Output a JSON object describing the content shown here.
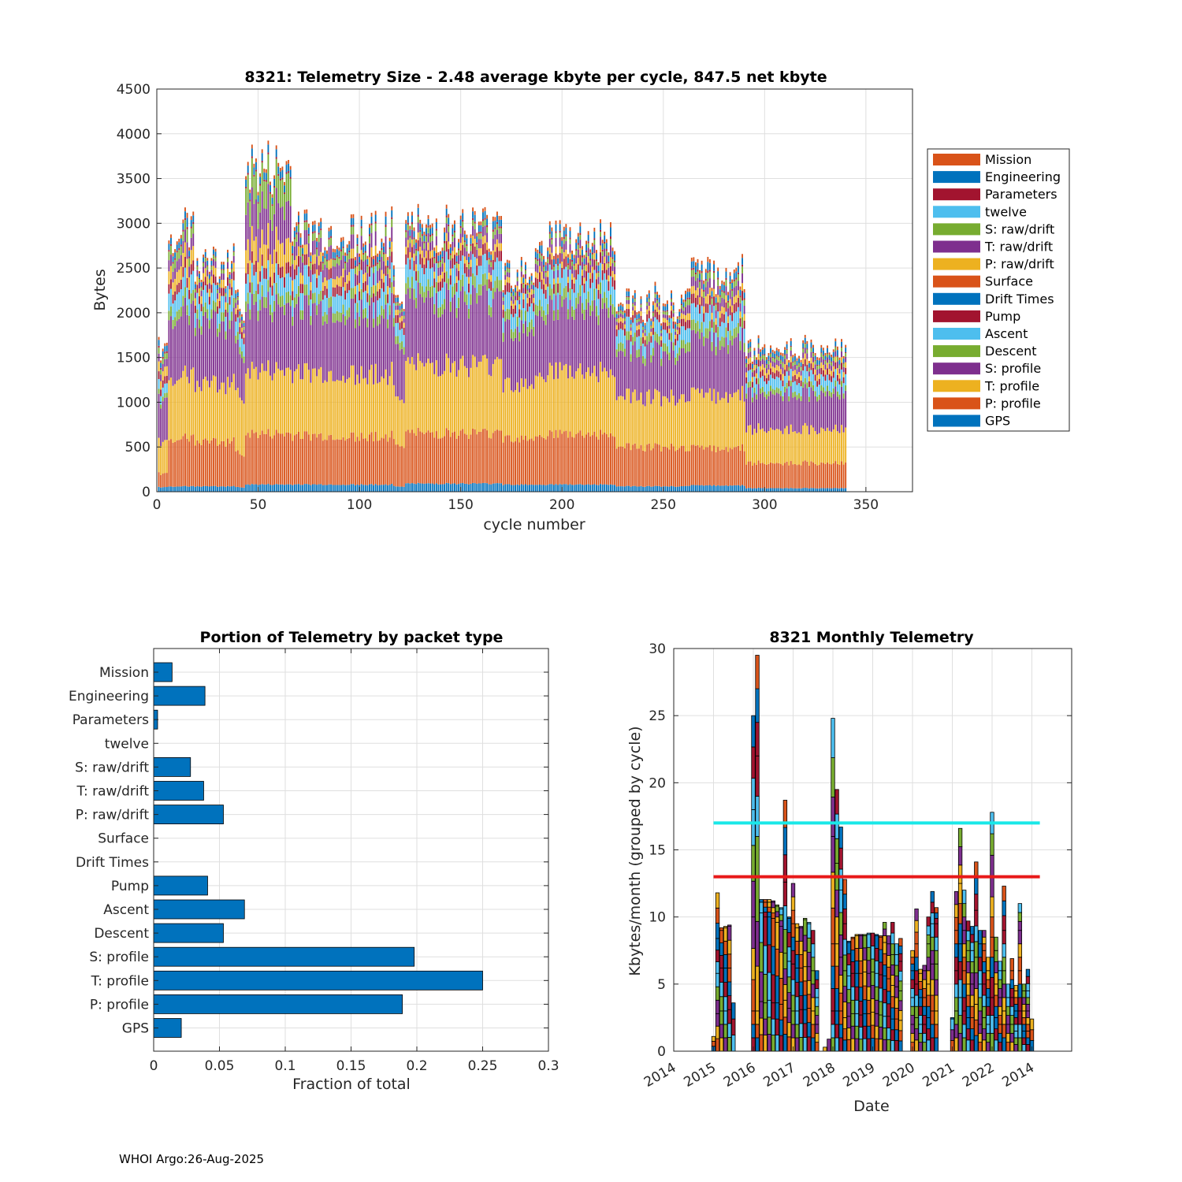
{
  "footer": "WHOI Argo:26-Aug-2025",
  "colors": {
    "Mission": "#D95319",
    "Engineering": "#0072BD",
    "Parameters": "#A2142F",
    "twelve": "#4DBEEE",
    "S: raw/drift": "#77AC30",
    "T: raw/drift": "#7E2F8E",
    "P: raw/drift": "#EDB120",
    "Surface": "#D95319",
    "Drift Times": "#0072BD",
    "Pump": "#A2142F",
    "Ascent": "#4DBEEE",
    "Descent": "#77AC30",
    "S: profile": "#7E2F8E",
    "T: profile": "#EDB120",
    "P: profile": "#D95319",
    "GPS": "#0072BD",
    "threshold_high": "#19E8E8",
    "threshold_low": "#E81919"
  },
  "chart_data": [
    {
      "type": "bar",
      "stacked": true,
      "title": "8321: Telemetry Size - 2.48 average kbyte per cycle,  847.5 net kbyte",
      "xlabel": "cycle number",
      "ylabel": "Bytes",
      "xlim": [
        0,
        373
      ],
      "ylim": [
        0,
        4500
      ],
      "xticks": [
        "0",
        "50",
        "100",
        "150",
        "200",
        "250",
        "300",
        "350"
      ],
      "yticks": [
        "0",
        "500",
        "1000",
        "1500",
        "2000",
        "2500",
        "3000",
        "3500",
        "4000",
        "4500"
      ],
      "legend_position": "outside-right",
      "legend": [
        "Mission",
        "Engineering",
        "Parameters",
        "twelve",
        "S: raw/drift",
        "T: raw/drift",
        "P: raw/drift",
        "Surface",
        "Drift Times",
        "Pump",
        "Ascent",
        "Descent",
        "S: profile",
        "T: profile",
        "P: profile",
        "GPS"
      ],
      "stack_order": [
        "GPS",
        "P: profile",
        "T: profile",
        "S: profile",
        "Descent",
        "Ascent",
        "Pump",
        "Drift Times",
        "Surface",
        "P: raw/drift",
        "T: raw/drift",
        "S: raw/drift",
        "twelve",
        "Parameters",
        "Engineering",
        "Mission"
      ],
      "segments": [
        {
          "cycle_start": 1,
          "cycle_end": 5,
          "values": [
            50,
            150,
            350,
            450,
            50,
            100,
            80,
            0,
            0,
            100,
            80,
            60,
            0,
            20,
            60,
            30
          ]
        },
        {
          "cycle_start": 6,
          "cycle_end": 18,
          "values": [
            60,
            540,
            700,
            700,
            110,
            200,
            110,
            0,
            0,
            150,
            130,
            100,
            0,
            20,
            70,
            40
          ]
        },
        {
          "cycle_start": 19,
          "cycle_end": 38,
          "values": [
            60,
            500,
            650,
            680,
            100,
            180,
            90,
            0,
            0,
            90,
            70,
            40,
            0,
            10,
            50,
            30
          ]
        },
        {
          "cycle_start": 39,
          "cycle_end": 43,
          "values": [
            50,
            380,
            650,
            500,
            80,
            150,
            80,
            0,
            0,
            50,
            50,
            30,
            0,
            10,
            40,
            30
          ]
        },
        {
          "cycle_start": 44,
          "cycle_end": 66,
          "values": [
            80,
            560,
            700,
            700,
            120,
            200,
            120,
            0,
            0,
            260,
            400,
            300,
            0,
            20,
            80,
            40
          ]
        },
        {
          "cycle_start": 67,
          "cycle_end": 116,
          "values": [
            80,
            540,
            700,
            700,
            110,
            200,
            110,
            0,
            0,
            100,
            150,
            80,
            0,
            20,
            70,
            40
          ]
        },
        {
          "cycle_start": 117,
          "cycle_end": 122,
          "values": [
            60,
            480,
            550,
            600,
            90,
            150,
            90,
            0,
            0,
            60,
            50,
            30,
            0,
            10,
            50,
            30
          ]
        },
        {
          "cycle_start": 123,
          "cycle_end": 170,
          "values": [
            90,
            560,
            760,
            720,
            120,
            200,
            110,
            0,
            0,
            80,
            100,
            60,
            0,
            20,
            70,
            40
          ]
        },
        {
          "cycle_start": 171,
          "cycle_end": 186,
          "values": [
            80,
            520,
            610,
            620,
            110,
            180,
            100,
            0,
            0,
            60,
            50,
            40,
            0,
            10,
            50,
            30
          ]
        },
        {
          "cycle_start": 187,
          "cycle_end": 226,
          "values": [
            80,
            560,
            700,
            700,
            120,
            200,
            110,
            0,
            0,
            70,
            90,
            50,
            0,
            20,
            70,
            40
          ]
        },
        {
          "cycle_start": 227,
          "cycle_end": 260,
          "values": [
            60,
            440,
            560,
            500,
            90,
            150,
            80,
            0,
            0,
            50,
            40,
            30,
            0,
            10,
            50,
            30
          ]
        },
        {
          "cycle_start": 261,
          "cycle_end": 290,
          "values": [
            70,
            420,
            600,
            600,
            110,
            170,
            100,
            0,
            0,
            80,
            100,
            70,
            0,
            20,
            70,
            40
          ]
        },
        {
          "cycle_start": 291,
          "cycle_end": 340,
          "values": [
            40,
            280,
            380,
            400,
            60,
            120,
            70,
            0,
            0,
            60,
            60,
            40,
            0,
            10,
            50,
            30
          ]
        }
      ]
    },
    {
      "type": "bar",
      "orientation": "horizontal",
      "title": "Portion of Telemetry by packet type",
      "xlabel": "Fraction of total",
      "ylabel": "",
      "xlim": [
        0,
        0.3
      ],
      "xticks": [
        "0",
        "0.05",
        "0.1",
        "0.15",
        "0.2",
        "0.25",
        "0.3"
      ],
      "categories": [
        "Mission",
        "Engineering",
        "Parameters",
        "twelve",
        "S: raw/drift",
        "T: raw/drift",
        "P: raw/drift",
        "Surface",
        "Drift Times",
        "Pump",
        "Ascent",
        "Descent",
        "S: profile",
        "T: profile",
        "P: profile",
        "GPS"
      ],
      "values": [
        0.014,
        0.039,
        0.003,
        0,
        0.028,
        0.038,
        0.053,
        0,
        0,
        0.041,
        0.069,
        0.053,
        0.198,
        0.25,
        0.189,
        0.021
      ]
    },
    {
      "type": "bar",
      "stacked": true,
      "title": "8321 Monthly Telemetry",
      "xlabel": "Date",
      "ylabel": "Kbytes/month (grouped by cycle)",
      "ylim": [
        0,
        30
      ],
      "xlim_years": [
        2014,
        2024
      ],
      "yticks": [
        "0",
        "5",
        "10",
        "15",
        "20",
        "25",
        "30"
      ],
      "xticks": [
        "2014",
        "2015",
        "2016",
        "2017",
        "2018",
        "2019",
        "2020",
        "2021",
        "2022",
        "2014"
      ],
      "threshold_high": 17,
      "threshold_low": 13,
      "months": [
        {
          "t": 2015.0,
          "v": [
            1.1,
            0,
            0,
            0
          ]
        },
        {
          "t": 2015.1,
          "v": [
            2.8,
            3.0,
            2.6,
            3.4
          ]
        },
        {
          "t": 2015.2,
          "v": [
            3.0,
            3.2,
            2.8,
            0.2
          ]
        },
        {
          "t": 2015.3,
          "v": [
            3.0,
            3.2,
            3.0,
            0.1
          ]
        },
        {
          "t": 2015.4,
          "v": [
            3.1,
            3.1,
            3.1,
            0.1
          ]
        },
        {
          "t": 2015.5,
          "v": [
            3.6,
            0,
            0,
            0
          ]
        },
        {
          "t": 2016.0,
          "v": [
            3.0,
            7.0,
            8.0,
            7.0
          ]
        },
        {
          "t": 2016.1,
          "v": [
            3.0,
            10.0,
            9.0,
            7.5
          ]
        },
        {
          "t": 2016.2,
          "v": [
            3.7,
            6.6,
            0.8,
            0.2
          ]
        },
        {
          "t": 2016.3,
          "v": [
            3.6,
            6.4,
            1.1,
            0.2
          ]
        },
        {
          "t": 2016.4,
          "v": [
            3.8,
            6.2,
            1.1,
            0.2
          ]
        },
        {
          "t": 2016.5,
          "v": [
            3.6,
            6.3,
            1.2,
            0.1
          ]
        },
        {
          "t": 2016.6,
          "v": [
            3.6,
            6.0,
            1.2,
            0.1
          ]
        },
        {
          "t": 2016.7,
          "v": [
            3.5,
            5.8,
            1.3,
            0.1
          ]
        },
        {
          "t": 2016.8,
          "v": [
            3.8,
            3.5,
            5.3,
            6.1
          ]
        },
        {
          "t": 2016.9,
          "v": [
            3.2,
            3.5,
            3.2,
            0.1
          ]
        },
        {
          "t": 2017.0,
          "v": [
            3.0,
            3.5,
            3.0,
            3.0
          ]
        },
        {
          "t": 2017.1,
          "v": [
            3.0,
            3.2,
            3.0,
            0.3
          ]
        },
        {
          "t": 2017.2,
          "v": [
            3.1,
            3.1,
            3.0,
            0.1
          ]
        },
        {
          "t": 2017.3,
          "v": [
            3.1,
            3.2,
            3.5,
            0.1
          ]
        },
        {
          "t": 2017.4,
          "v": [
            3.2,
            3.1,
            3.2,
            0.1
          ]
        },
        {
          "t": 2017.5,
          "v": [
            3.0,
            3.0,
            3.0,
            0.0
          ]
        },
        {
          "t": 2017.6,
          "v": [
            2.0,
            2.0,
            2.0,
            0.0
          ]
        },
        {
          "t": 2017.8,
          "v": [
            0.3,
            0,
            0,
            0
          ]
        },
        {
          "t": 2017.9,
          "v": [
            0.9,
            0,
            0,
            0
          ]
        },
        {
          "t": 2018.0,
          "v": [
            3.0,
            5.0,
            8.0,
            8.8
          ]
        },
        {
          "t": 2018.1,
          "v": [
            3.0,
            5.0,
            6.0,
            5.5
          ]
        },
        {
          "t": 2018.2,
          "v": [
            3.0,
            4.0,
            5.0,
            4.7
          ]
        },
        {
          "t": 2018.3,
          "v": [
            2.5,
            3.5,
            3.5,
            3.3
          ]
        },
        {
          "t": 2018.4,
          "v": [
            2.6,
            3.0,
            2.5,
            0.1
          ]
        },
        {
          "t": 2018.5,
          "v": [
            2.8,
            3.0,
            2.6,
            0.1
          ]
        },
        {
          "t": 2018.6,
          "v": [
            2.8,
            3.0,
            2.8,
            0.1
          ]
        },
        {
          "t": 2018.7,
          "v": [
            2.7,
            3.1,
            2.8,
            0.1
          ]
        },
        {
          "t": 2018.8,
          "v": [
            2.8,
            3.1,
            2.7,
            0.1
          ]
        },
        {
          "t": 2018.9,
          "v": [
            2.8,
            3.0,
            2.9,
            0.1
          ]
        },
        {
          "t": 2019.0,
          "v": [
            2.9,
            3.0,
            2.9,
            0.0
          ]
        },
        {
          "t": 2019.1,
          "v": [
            2.8,
            3.0,
            2.8,
            0.1
          ]
        },
        {
          "t": 2019.2,
          "v": [
            2.7,
            3.0,
            2.8,
            0.1
          ]
        },
        {
          "t": 2019.3,
          "v": [
            2.6,
            3.0,
            2.5,
            1.5
          ]
        },
        {
          "t": 2019.4,
          "v": [
            2.6,
            2.8,
            2.6,
            0.6
          ]
        },
        {
          "t": 2019.5,
          "v": [
            2.4,
            2.5,
            2.3,
            2.4
          ]
        },
        {
          "t": 2019.6,
          "v": [
            2.4,
            2.4,
            2.4,
            0.8
          ]
        },
        {
          "t": 2019.7,
          "v": [
            2.3,
            2.2,
            2.2,
            1.7
          ]
        },
        {
          "t": 2020.0,
          "v": [
            2.0,
            2.0,
            2.0,
            1.5
          ]
        },
        {
          "t": 2020.1,
          "v": [
            2.5,
            2.5,
            3.0,
            2.6
          ]
        },
        {
          "t": 2020.2,
          "v": [
            2.0,
            2.0,
            1.8,
            0.3
          ]
        },
        {
          "t": 2020.3,
          "v": [
            2.0,
            2.0,
            2.0,
            0.4
          ]
        },
        {
          "t": 2020.4,
          "v": [
            2.5,
            2.5,
            3.0,
            2.0
          ]
        },
        {
          "t": 2020.5,
          "v": [
            3.0,
            3.5,
            3.0,
            2.4
          ]
        },
        {
          "t": 2020.6,
          "v": [
            3.0,
            3.5,
            3.0,
            1.2
          ]
        },
        {
          "t": 2021.0,
          "v": [
            0.8,
            0.8,
            0.8,
            0.1
          ]
        },
        {
          "t": 2021.1,
          "v": [
            3.0,
            3.0,
            3.0,
            2.9
          ]
        },
        {
          "t": 2021.2,
          "v": [
            4.0,
            4.0,
            4.5,
            4.1
          ]
        },
        {
          "t": 2021.3,
          "v": [
            3.0,
            3.0,
            3.0,
            3.0
          ]
        },
        {
          "t": 2021.4,
          "v": [
            2.5,
            2.5,
            2.5,
            2.2
          ]
        },
        {
          "t": 2021.5,
          "v": [
            2.5,
            2.5,
            2.5,
            1.8
          ]
        },
        {
          "t": 2021.6,
          "v": [
            3.5,
            3.5,
            3.5,
            3.6
          ]
        },
        {
          "t": 2021.7,
          "v": [
            2.0,
            3.0,
            3.0,
            1.0
          ]
        },
        {
          "t": 2021.8,
          "v": [
            2.5,
            2.5,
            2.5,
            1.5
          ]
        },
        {
          "t": 2021.9,
          "v": [
            2.0,
            2.0,
            2.0,
            1.0
          ]
        },
        {
          "t": 2022.0,
          "v": [
            4.0,
            4.5,
            4.5,
            4.8
          ]
        },
        {
          "t": 2022.1,
          "v": [
            2.5,
            2.5,
            2.5,
            1.0
          ]
        },
        {
          "t": 2022.2,
          "v": [
            2.0,
            2.0,
            2.0,
            0.7
          ]
        },
        {
          "t": 2022.3,
          "v": [
            3.0,
            3.0,
            3.0,
            3.3
          ]
        },
        {
          "t": 2022.4,
          "v": [
            2.0,
            2.0,
            1.0,
            0.0
          ]
        },
        {
          "t": 2022.5,
          "v": [
            2.0,
            2.0,
            2.0,
            0.9
          ]
        },
        {
          "t": 2022.6,
          "v": [
            1.5,
            1.5,
            1.5,
            0.4
          ]
        },
        {
          "t": 2022.7,
          "v": [
            3.0,
            3.0,
            3.0,
            2.0
          ]
        },
        {
          "t": 2022.8,
          "v": [
            1.5,
            1.5,
            1.5,
            0.5
          ]
        },
        {
          "t": 2022.9,
          "v": [
            1.5,
            1.5,
            1.5,
            1.6
          ]
        },
        {
          "t": 2023.0,
          "v": [
            2.4,
            0,
            0,
            0
          ]
        }
      ],
      "month_colors": [
        "#0072BD",
        "#D95319",
        "#EDB120",
        "#7E2F8E",
        "#77AC30",
        "#4DBEEE",
        "#A2142F"
      ]
    }
  ]
}
